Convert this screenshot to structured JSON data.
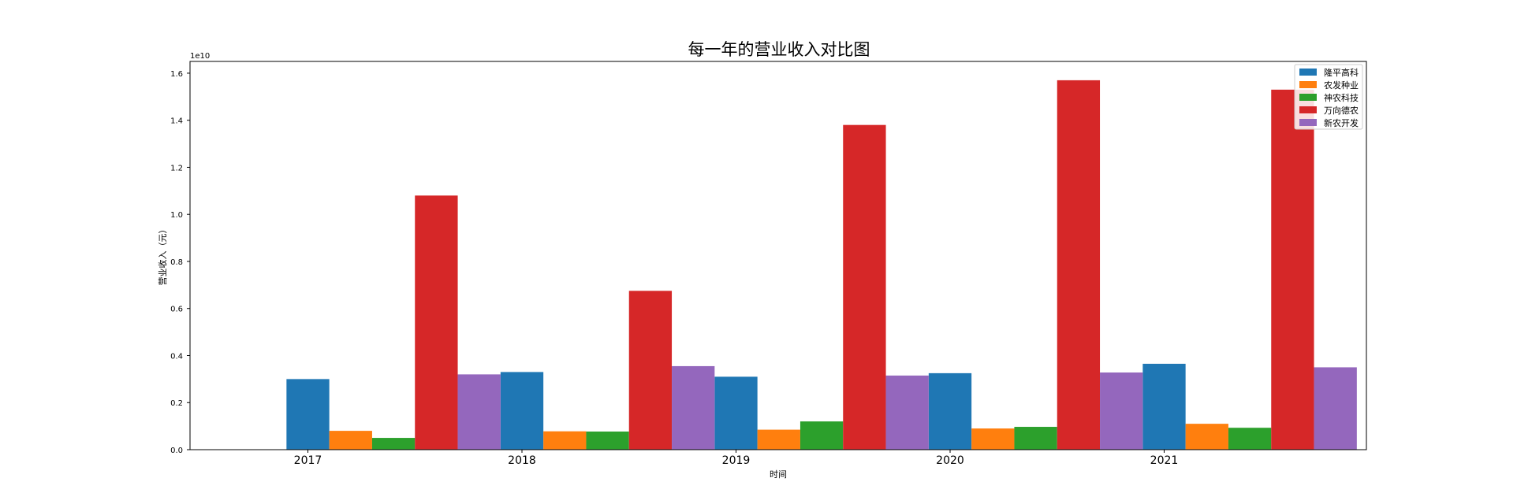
{
  "chart_data": {
    "type": "bar",
    "title": "每一年的营业收入对比图",
    "xlabel": "时间",
    "ylabel": "营业收入（元）",
    "y_scale_label": "1e10",
    "y_scale": 10000000000,
    "ylim": [
      0,
      1.65
    ],
    "yticks": [
      0.0,
      0.2,
      0.4,
      0.6,
      0.8,
      1.0,
      1.2,
      1.4,
      1.6
    ],
    "ytick_labels": [
      "0.0",
      "0.2",
      "0.4",
      "0.6",
      "0.8",
      "1.0",
      "1.2",
      "1.4",
      "1.6"
    ],
    "categories": [
      "2017",
      "2018",
      "2019",
      "2020",
      "2021"
    ],
    "legend_position": "top-right",
    "grid": false,
    "series": [
      {
        "name": "隆平高科",
        "color": "#1f77b4",
        "values": [
          0.3,
          0.33,
          0.31,
          0.325,
          0.365
        ]
      },
      {
        "name": "农发种业",
        "color": "#ff7f0e",
        "values": [
          0.08,
          0.078,
          0.085,
          0.09,
          0.11
        ]
      },
      {
        "name": "神农科技",
        "color": "#2ca02c",
        "values": [
          0.05,
          0.077,
          0.12,
          0.097,
          0.093
        ]
      },
      {
        "name": "万向德农",
        "color": "#d62728",
        "values": [
          1.08,
          0.675,
          1.38,
          1.57,
          1.53
        ]
      },
      {
        "name": "新农开发",
        "color": "#9467bd",
        "values": [
          0.32,
          0.355,
          0.315,
          0.328,
          0.35
        ]
      }
    ]
  }
}
